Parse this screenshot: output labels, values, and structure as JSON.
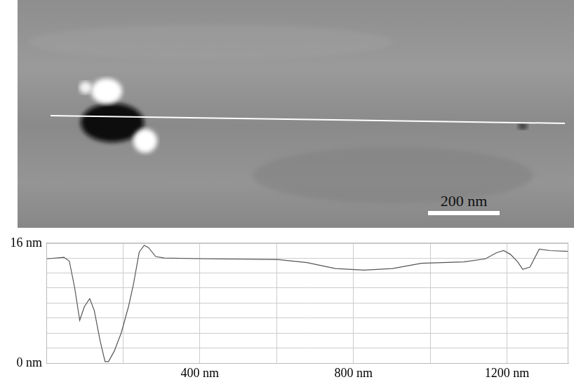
{
  "image": {
    "scale_bar": "200 nm"
  },
  "chart_data": {
    "type": "line",
    "x": [
      0,
      46,
      60,
      74,
      87,
      99,
      113,
      125,
      140,
      153,
      162,
      177,
      195,
      214,
      227,
      242,
      255,
      266,
      285,
      307,
      419,
      605,
      679,
      753,
      828,
      902,
      977,
      1088,
      1144,
      1172,
      1191,
      1209,
      1228,
      1241,
      1260,
      1284,
      1312,
      1360
    ],
    "values": [
      13.9,
      14.1,
      13.6,
      10,
      5.7,
      7.5,
      8.6,
      7,
      3,
      0.2,
      0.2,
      1.6,
      4,
      7.5,
      10.5,
      14.8,
      15.7,
      15.4,
      14.2,
      14,
      13.9,
      13.8,
      13.4,
      12.6,
      12.4,
      12.6,
      13.3,
      13.5,
      13.9,
      14.7,
      15,
      14.5,
      13.5,
      12.5,
      12.8,
      15.2,
      15,
      14.9
    ],
    "color": "#555555",
    "xlim": [
      0,
      1360
    ],
    "xticks": [
      {
        "value": 200,
        "label": null
      },
      {
        "value": 400,
        "label": "400 nm"
      },
      {
        "value": 600,
        "label": null
      },
      {
        "value": 800,
        "label": "800 nm"
      },
      {
        "value": 1000,
        "label": null
      },
      {
        "value": 1200,
        "label": "1200 nm"
      }
    ],
    "ylim": [
      0,
      16
    ],
    "yticks": [
      {
        "value": 0,
        "label": "0 nm"
      },
      {
        "value": 2,
        "label": null
      },
      {
        "value": 4,
        "label": null
      },
      {
        "value": 6,
        "label": null
      },
      {
        "value": 8,
        "label": null
      },
      {
        "value": 10,
        "label": null
      },
      {
        "value": 12,
        "label": null
      },
      {
        "value": 14,
        "label": null
      },
      {
        "value": 16,
        "label": "16 nm"
      }
    ],
    "grid": true
  }
}
